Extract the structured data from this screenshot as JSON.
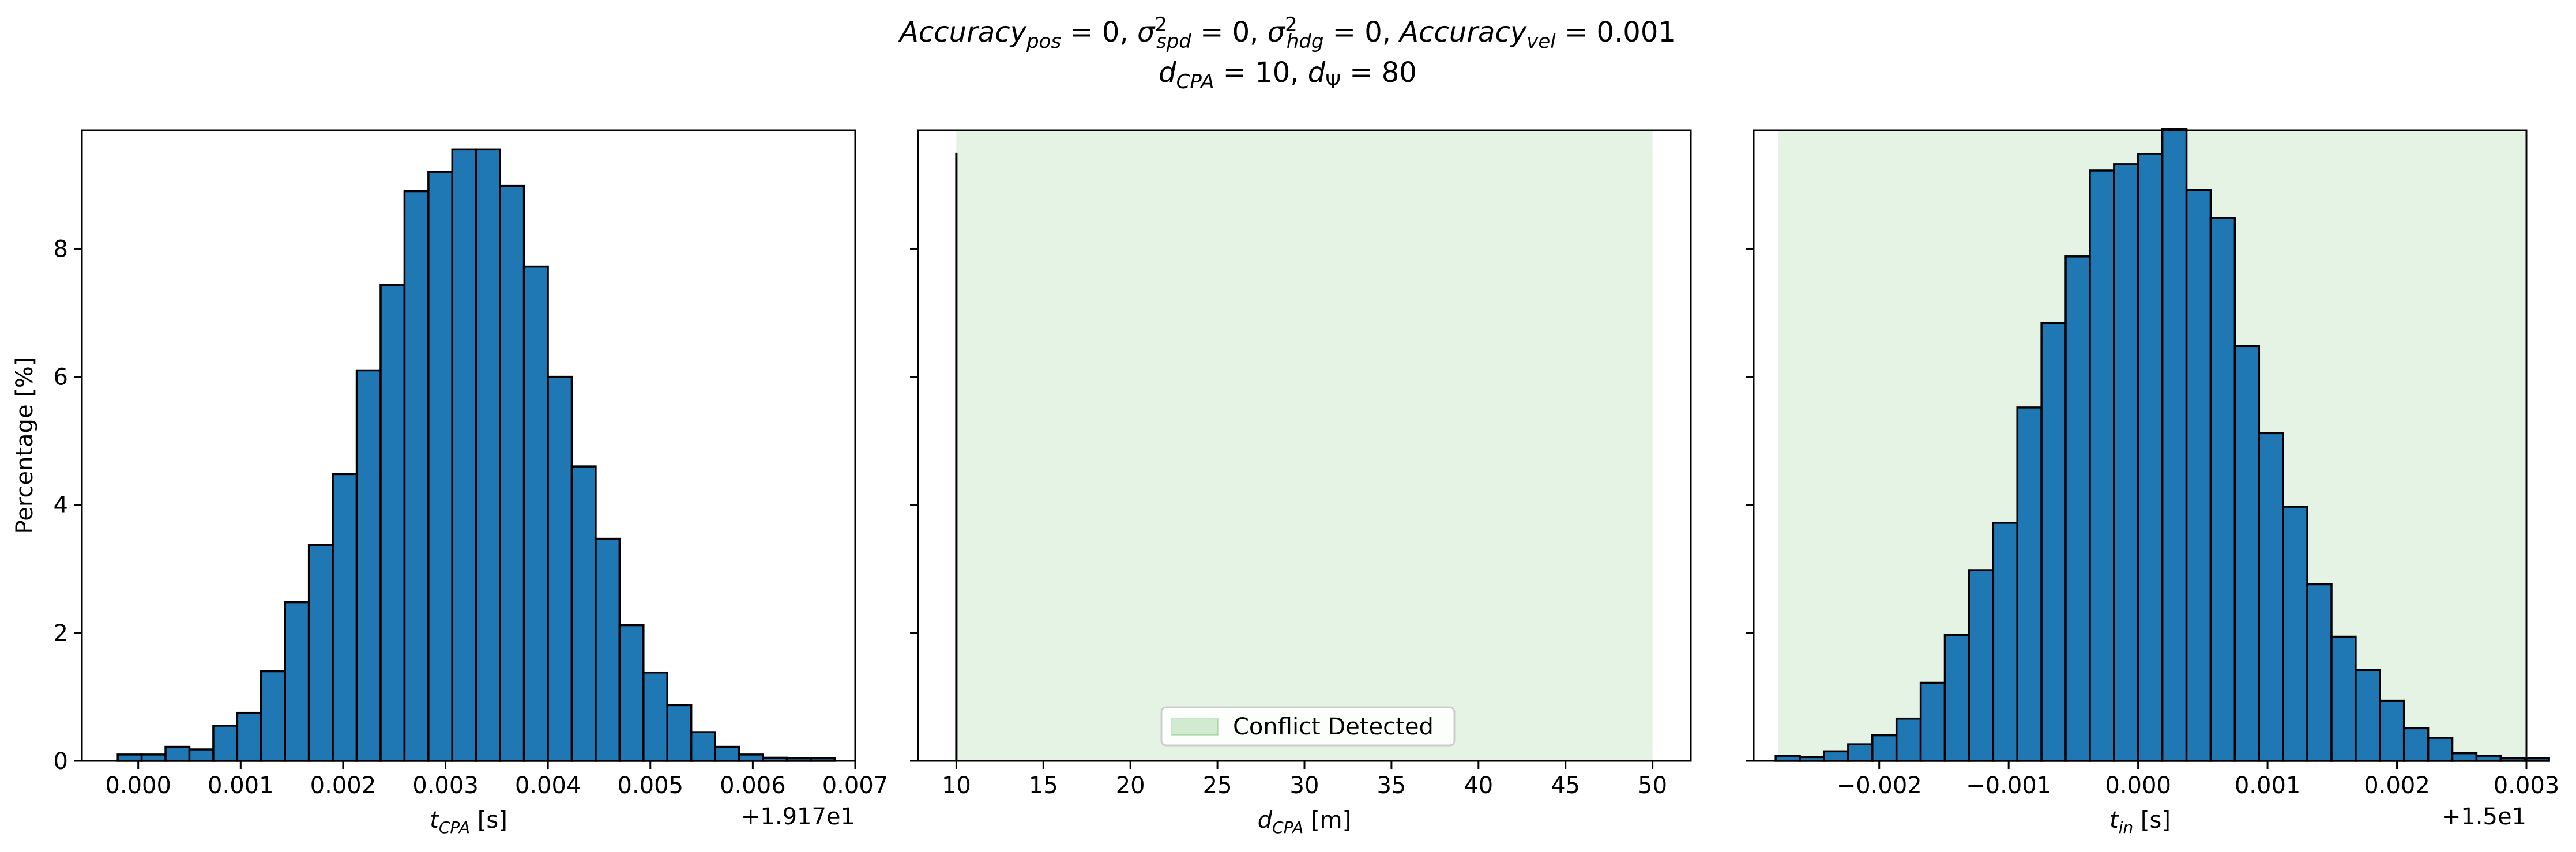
{
  "figure": {
    "title_line1": {
      "parts": [
        {
          "t": "Accuracy",
          "style": "italic"
        },
        {
          "t": "pos",
          "style": "italic-sub"
        },
        {
          "t": " = 0, ",
          "style": "normal"
        },
        {
          "t": "σ",
          "style": "italic"
        },
        {
          "t": "2",
          "style": "sup"
        },
        {
          "t": "spd",
          "style": "italic-sub"
        },
        {
          "t": " = 0, ",
          "style": "normal"
        },
        {
          "t": "σ",
          "style": "italic"
        },
        {
          "t": "2",
          "style": "sup"
        },
        {
          "t": "hdg",
          "style": "italic-sub"
        },
        {
          "t": " = 0, ",
          "style": "normal"
        },
        {
          "t": "Accuracy",
          "style": "italic"
        },
        {
          "t": "vel",
          "style": "italic-sub"
        },
        {
          "t": " = 0.001",
          "style": "normal"
        }
      ]
    },
    "title_line2": {
      "parts": [
        {
          "t": "d",
          "style": "italic"
        },
        {
          "t": "CPA",
          "style": "italic-sub"
        },
        {
          "t": " = 10, ",
          "style": "normal"
        },
        {
          "t": "d",
          "style": "italic"
        },
        {
          "t": "Ψ",
          "style": "sub"
        },
        {
          "t": " = 80",
          "style": "normal"
        }
      ]
    }
  },
  "chart_data": [
    {
      "type": "bar",
      "panel": "left",
      "ylabel": "Percentage [%]",
      "xlabel_parts": [
        {
          "t": "t",
          "style": "italic"
        },
        {
          "t": "CPA",
          "style": "italic-sub"
        },
        {
          "t": " [s]",
          "style": "normal"
        }
      ],
      "offset_label": "+1.917e1",
      "xlim": [
        -0.00055,
        0.007
      ],
      "ylim": [
        0,
        9.85
      ],
      "xticks": [
        0.0,
        0.001,
        0.002,
        0.003,
        0.004,
        0.005,
        0.006,
        0.007
      ],
      "xtick_labels": [
        "0.000",
        "0.001",
        "0.002",
        "0.003",
        "0.004",
        "0.005",
        "0.006",
        "0.007"
      ],
      "yticks": [
        0,
        2,
        4,
        6,
        8
      ],
      "ytick_labels": [
        "0",
        "2",
        "4",
        "6",
        "8"
      ],
      "bin_start": -0.0002,
      "bin_width": 0.0002333,
      "values": [
        0.1,
        0.1,
        0.22,
        0.18,
        0.55,
        0.75,
        1.4,
        2.48,
        3.37,
        4.48,
        6.1,
        7.43,
        8.9,
        9.2,
        9.55,
        9.55,
        8.98,
        7.72,
        6.0,
        4.6,
        3.47,
        2.12,
        1.38,
        0.87,
        0.45,
        0.22,
        0.1,
        0.05,
        0.04,
        0.04
      ],
      "bar_color": "#1f77b4",
      "edge_color": "#000000"
    },
    {
      "type": "bar",
      "panel": "middle",
      "xlabel_parts": [
        {
          "t": "d",
          "style": "italic"
        },
        {
          "t": "CPA",
          "style": "italic-sub"
        },
        {
          "t": " [m]",
          "style": "normal"
        }
      ],
      "xlim": [
        7.8,
        52.2
      ],
      "ylim": [
        0,
        9.85
      ],
      "xticks": [
        10,
        15,
        20,
        25,
        30,
        35,
        40,
        45,
        50
      ],
      "xtick_labels": [
        "10",
        "15",
        "20",
        "25",
        "30",
        "35",
        "40",
        "45",
        "50"
      ],
      "yticks": [
        0,
        2,
        4,
        6,
        8
      ],
      "shaded_region": {
        "x0": 10,
        "x1": 50,
        "color": "#2ca02c",
        "alpha": 0.13
      },
      "spike": {
        "x": 10,
        "value": 9.5
      },
      "legend": {
        "label": "Conflict Detected",
        "position": "lower center"
      }
    },
    {
      "type": "bar",
      "panel": "right",
      "xlabel_parts": [
        {
          "t": "t",
          "style": "italic"
        },
        {
          "t": "in",
          "style": "italic-sub"
        },
        {
          "t": " [s]",
          "style": "normal"
        }
      ],
      "offset_label": "+1.5e1",
      "xlim": [
        -0.00297,
        0.003
      ],
      "ylim": [
        0,
        9.85
      ],
      "xticks": [
        -0.002,
        -0.001,
        0.0,
        0.001,
        0.002,
        0.003
      ],
      "xtick_labels": [
        "−0.002",
        "−0.001",
        "0.000",
        "0.001",
        "0.002",
        "0.003"
      ],
      "yticks": [
        0,
        2,
        4,
        6,
        8
      ],
      "shaded_region": {
        "x0": -0.00278,
        "x1": 0.003,
        "color": "#2ca02c",
        "alpha": 0.13
      },
      "bin_start": -0.0028,
      "bin_width": 0.0001867,
      "values": [
        0.08,
        0.06,
        0.15,
        0.26,
        0.4,
        0.66,
        1.22,
        1.97,
        2.98,
        3.72,
        5.52,
        6.84,
        7.88,
        9.22,
        9.32,
        9.48,
        9.87,
        8.92,
        8.48,
        6.48,
        5.12,
        3.97,
        2.76,
        1.94,
        1.42,
        0.94,
        0.51,
        0.36,
        0.12,
        0.08,
        0.04,
        0.04
      ],
      "bar_color": "#1f77b4",
      "edge_color": "#000000"
    }
  ]
}
